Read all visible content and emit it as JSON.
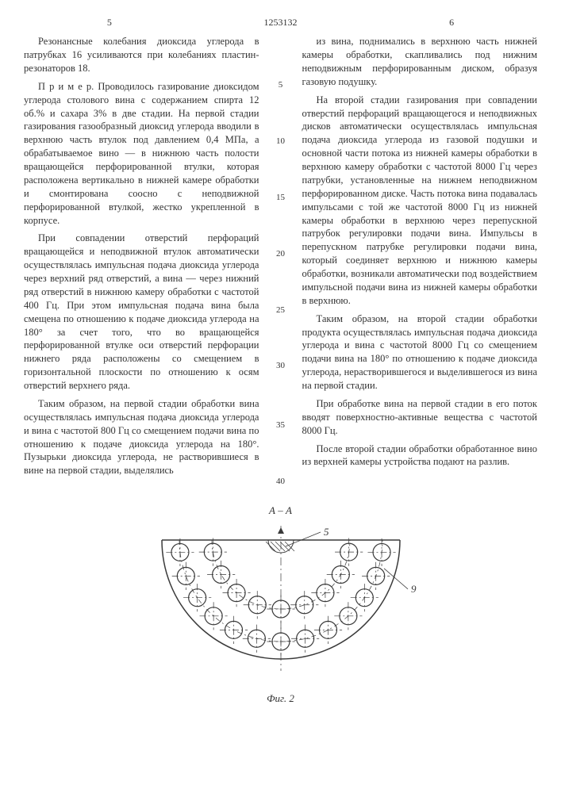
{
  "header": {
    "page_left": "5",
    "doc_number": "1253132",
    "page_right": "6"
  },
  "left_column": {
    "p1": "Резонансные колебания диоксида углерода в патрубках 16 усиливаются при колебаниях пластин-резонаторов 18.",
    "p2": "П р и м е р. Проводилось газирование диоксидом углерода столового вина с содержанием спирта 12 об.% и сахара 3% в две стадии. На первой стадии газирования газообразный диоксид углерода вводили в верхнюю часть втулок под давлением 0,4 МПа, а обрабатываемое вино — в нижнюю часть полости вращающейся перфорированной втулки, которая расположена вертикально в нижней камере обработки и смонтирована соосно с неподвижной перфорированной втулкой, жестко укрепленной в корпусе.",
    "p3": "При совпадении отверстий перфораций вращающейся и неподвижной втулок автоматически осуществлялась импульсная подача диоксида углерода через верхний ряд отверстий, а вина — через нижний ряд отверстий в нижнюю камеру обработки с частотой 400 Гц. При этом импульсная подача вина была смещена по отношению к подаче диоксида углерода на 180° за счет того, что во вращающейся перфорированной втулке оси отверстий перфорации нижнего ряда расположены со смещением в горизонтальной плоскости по отношению к осям отверстий верхнего ряда.",
    "p4": "Таким образом, на первой стадии обработки вина осуществлялась импульсная подача диоксида углерода и вина с частотой 800 Гц со смещением подачи вина по отношению к подаче диоксида углерода на 180°. Пузырьки диоксида углерода, не растворившиеся в вине на первой стадии, выделялись"
  },
  "line_numbers": [
    "5",
    "10",
    "15",
    "20",
    "25",
    "30",
    "35",
    "40"
  ],
  "right_column": {
    "p1": "из вина, поднимались в верхнюю часть нижней камеры обработки, скапливались под нижним неподвижным перфорированным диском, образуя газовую подушку.",
    "p2": "На второй стадии газирования при совпадении отверстий перфораций вращающегося и неподвижных дисков автоматически осуществлялась импульсная подача диоксида углерода из газовой подушки и основной части потока из нижней камеры обработки в верхнюю камеру обработки с частотой 8000 Гц через патрубки, установленные на нижнем неподвижном перфорированном диске. Часть потока вина подавалась импульсами с той же частотой 8000 Гц из нижней камеры обработки в верхнюю через перепускной патрубок регулировки подачи вина. Импульсы в перепускном патрубке регулировки подачи вина, который соединяет верхнюю и нижнюю камеры обработки, возникали автоматически под воздействием импульсной подачи вина из нижней камеры обработки в верхнюю.",
    "p3": "Таким образом, на второй стадии обработки продукта осуществлялась импульсная подача диоксида углерода и вина с частотой 8000 Гц со смещением подачи вина на 180° по отношению к подаче диоксида углерода, нерастворившегося и выделившегося из вина на первой стадии.",
    "p4": "При обработке вина на первой стадии в его поток вводят поверхностно-активные вещества с частотой 8000 Гц.",
    "p5": "После второй стадии обработки обработанное вино из верхней камеры устройства подают на разлив."
  },
  "figure": {
    "section_label": "А – А",
    "caption": "Фиг. 2",
    "label_5": "5",
    "label_9": "9",
    "colors": {
      "stroke": "#3a3a3a",
      "hatch": "#3a3a3a",
      "bg": "#ffffff"
    },
    "circle_radius": 11,
    "outer_ring_r": 128,
    "inner_ring_r": 87,
    "outer_count": 13,
    "inner_count": 9,
    "arc_span_deg": 180
  }
}
